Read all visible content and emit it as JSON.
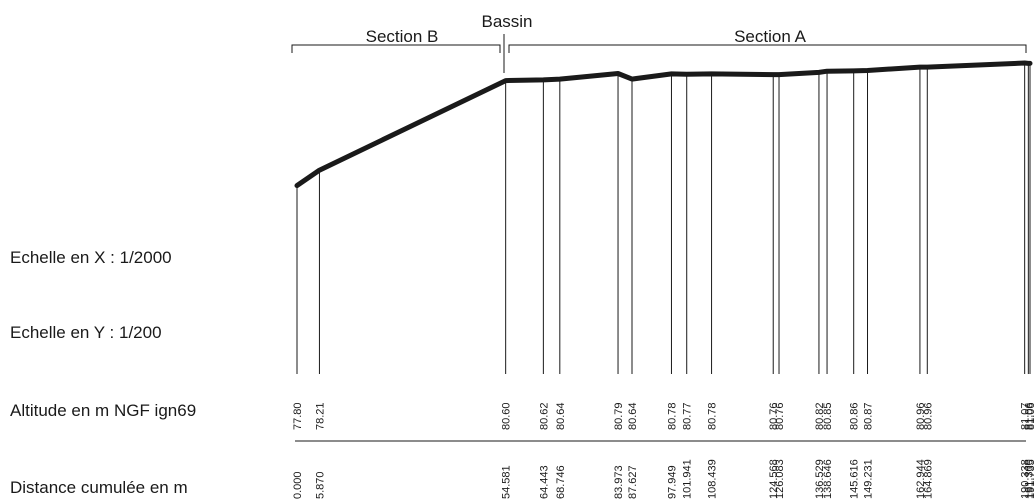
{
  "labels": {
    "scale_x": "Echelle en X : 1/2000",
    "scale_y": "Echelle en Y : 1/200",
    "altitude_row": "Altitude en m NGF ign69",
    "distance_row": "Distance cumulée en m"
  },
  "sections": {
    "section_b": "Section B",
    "bassin": "Bassin",
    "section_a": "Section A"
  },
  "chart_data": {
    "type": "line",
    "points": [
      {
        "distance": "0.000",
        "altitude": "77.80"
      },
      {
        "distance": "5.870",
        "altitude": "78.21"
      },
      {
        "distance": "54.581",
        "altitude": "80.60"
      },
      {
        "distance": "64.443",
        "altitude": "80.62"
      },
      {
        "distance": "68.746",
        "altitude": "80.64"
      },
      {
        "distance": "83.973",
        "altitude": "80.79"
      },
      {
        "distance": "87.627",
        "altitude": "80.64"
      },
      {
        "distance": "97.949",
        "altitude": "80.78"
      },
      {
        "distance": "101.941",
        "altitude": "80.77"
      },
      {
        "distance": "108.439",
        "altitude": "80.78"
      },
      {
        "distance": "124.568",
        "altitude": "80.76"
      },
      {
        "distance": "126.083",
        "altitude": "80.76"
      },
      {
        "distance": "136.529",
        "altitude": "80.82"
      },
      {
        "distance": "138.646",
        "altitude": "80.85"
      },
      {
        "distance": "145.616",
        "altitude": "80.86"
      },
      {
        "distance": "149.231",
        "altitude": "80.87"
      },
      {
        "distance": "162.944",
        "altitude": "80.96"
      },
      {
        "distance": "164.869",
        "altitude": "80.96"
      },
      {
        "distance": "190.338",
        "altitude": "81.07"
      },
      {
        "distance": "191.300",
        "altitude": "81.06"
      },
      {
        "distance": "191.735",
        "altitude": "81.06"
      }
    ]
  }
}
